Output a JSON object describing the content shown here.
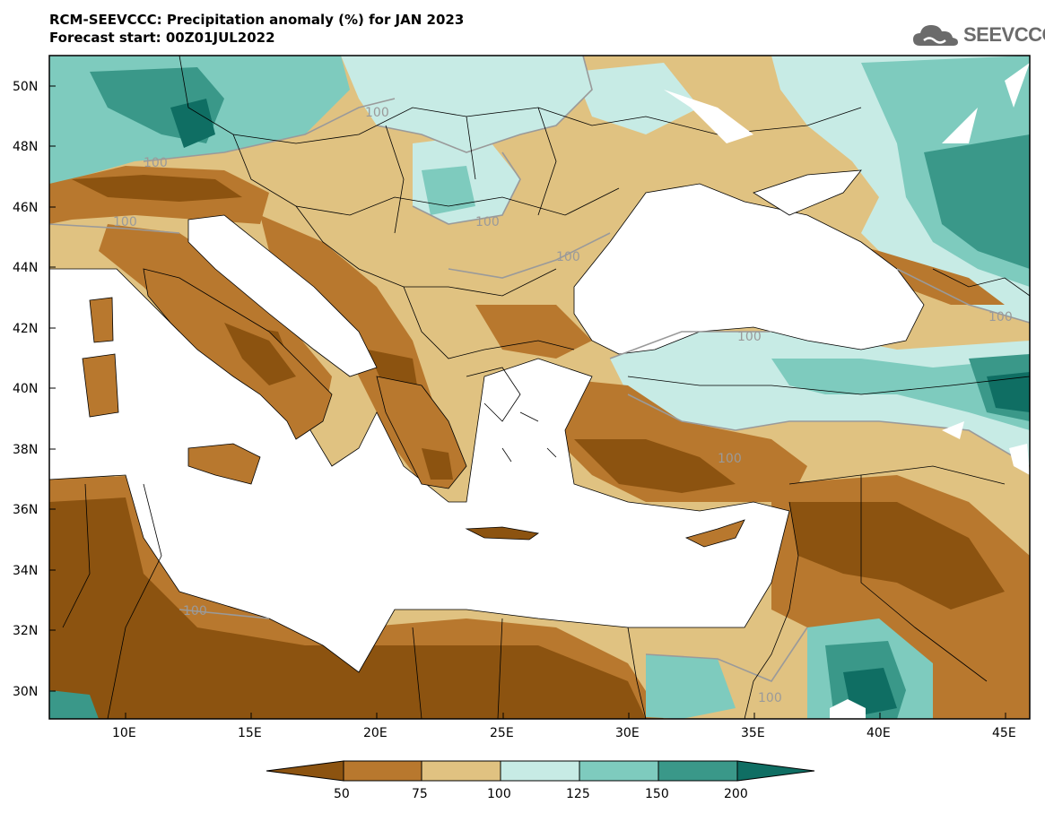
{
  "header": {
    "title_line1": "RCM-SEEVCCC: Precipitation anomaly (%) for JAN 2023",
    "title_line2": "Forecast start: 00Z01JUL2022"
  },
  "logo": {
    "text": "SEEVCCC",
    "icon": "cloud-logo-icon"
  },
  "map": {
    "lon_ticks": [
      "10E",
      "15E",
      "20E",
      "25E",
      "30E",
      "35E",
      "40E",
      "45E"
    ],
    "lat_ticks": [
      "50N",
      "48N",
      "46N",
      "44N",
      "42N",
      "40N",
      "38N",
      "36N",
      "34N",
      "32N",
      "30N"
    ],
    "contour_labels": [
      "100",
      "100",
      "100",
      "100",
      "100",
      "100",
      "100",
      "100",
      "100",
      "100"
    ]
  },
  "legend": {
    "levels": [
      "50",
      "75",
      "100",
      "125",
      "150",
      "200"
    ],
    "colors": {
      "lt50": "#8c5310",
      "b50_75": "#b8782e",
      "b75_100": "#e0c281",
      "b100_125": "#c7ebe5",
      "b125_150": "#7ecbbe",
      "b150_200": "#3a9889",
      "gt200": "#0f6e63"
    }
  }
}
